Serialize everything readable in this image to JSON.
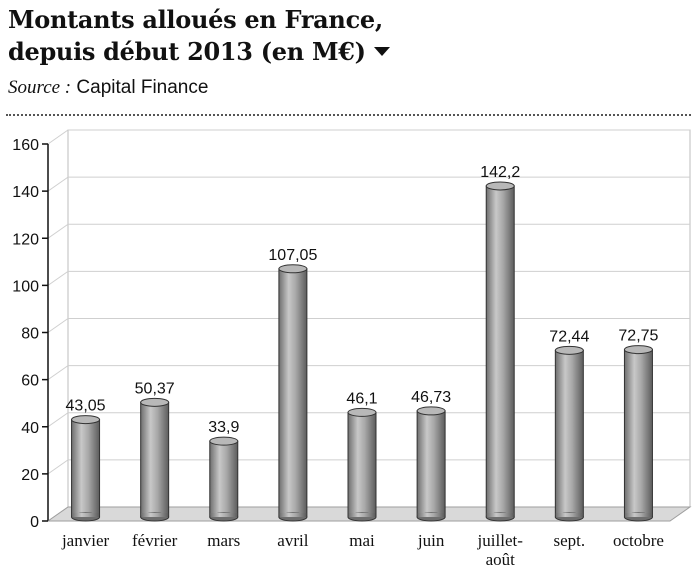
{
  "header": {
    "title_line1": "Montants alloués en France,",
    "title_line2": "depuis début 2013 (en M€)",
    "source_label": "Source :",
    "source_value": "Capital Finance"
  },
  "chart_data": {
    "type": "bar",
    "title": "Montants alloués en France, depuis début 2013 (en M€)",
    "categories": [
      "janvier",
      "février",
      "mars",
      "avril",
      "mai",
      "juin",
      "juillet-août",
      "sept.",
      "octobre"
    ],
    "category_lines": [
      [
        "janvier"
      ],
      [
        "février"
      ],
      [
        "mars"
      ],
      [
        "avril"
      ],
      [
        "mai"
      ],
      [
        "juin"
      ],
      [
        "juillet-",
        "août"
      ],
      [
        "sept."
      ],
      [
        "octobre"
      ]
    ],
    "values": [
      43.05,
      50.37,
      33.9,
      107.05,
      46.1,
      46.73,
      142.2,
      72.44,
      72.75
    ],
    "value_labels": [
      "43,05",
      "50,37",
      "33,9",
      "107,05",
      "46,1",
      "46,73",
      "142,2",
      "72,44",
      "72,75"
    ],
    "ylim": [
      0,
      160
    ],
    "yticks": [
      0,
      20,
      40,
      60,
      80,
      100,
      120,
      140,
      160
    ],
    "grid": true,
    "bar_style": "3d-cylinder",
    "colors": {
      "bar": "#9a9a9a",
      "floor": "#d9d9d9",
      "grid": "#cfcfcf",
      "axis": "#111111"
    }
  }
}
